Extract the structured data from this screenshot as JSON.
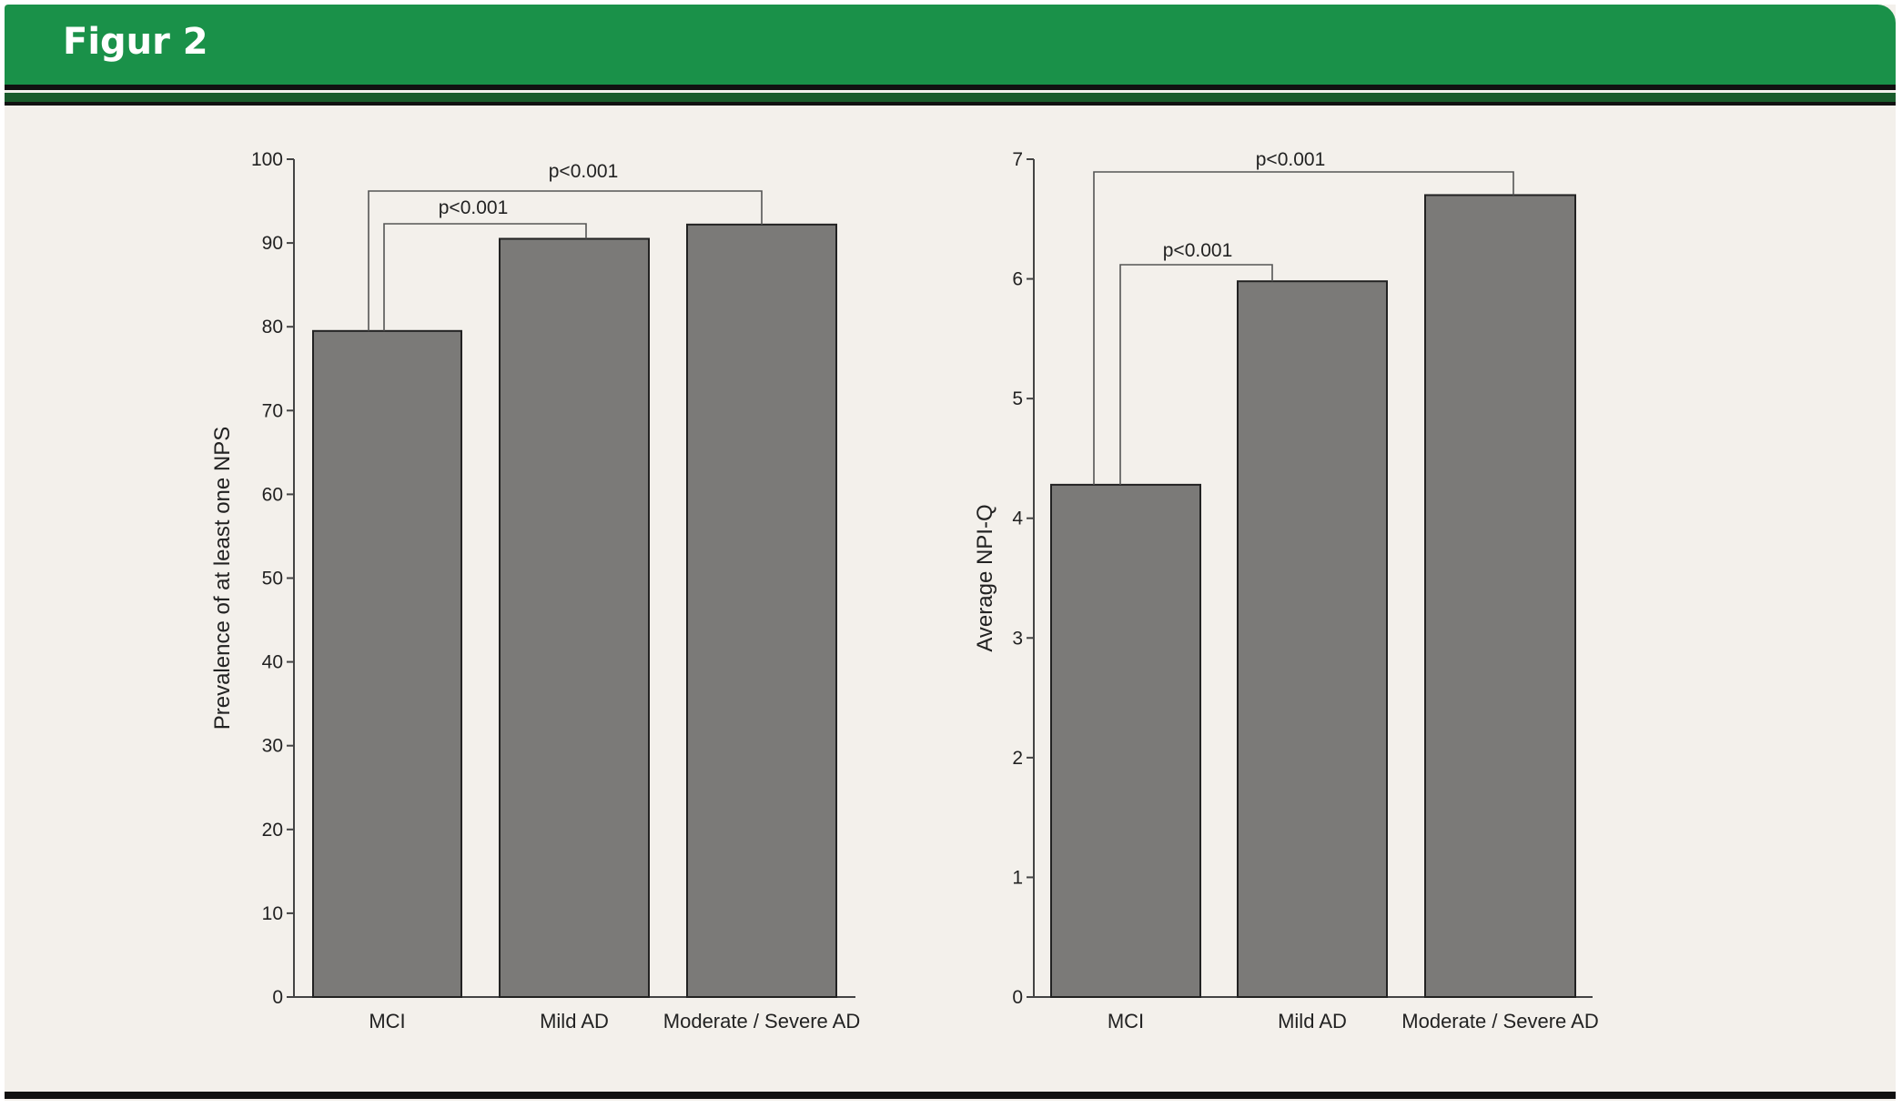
{
  "header": {
    "title": "Figur 2"
  },
  "colors": {
    "header_green": "#1a9149",
    "bar_fill": "#7b7a78",
    "background": "#f3f0eb"
  },
  "chart_data": [
    {
      "type": "bar",
      "categories": [
        "MCI",
        "Mild AD",
        "Moderate / Severe AD"
      ],
      "values": [
        79.5,
        90.5,
        92.2
      ],
      "ylabel": "Prevalence of at least one NPS",
      "ylim": [
        0,
        100
      ],
      "yticks": [
        0,
        10,
        20,
        30,
        40,
        50,
        60,
        70,
        80,
        90,
        100
      ],
      "annotations": [
        {
          "from": 0,
          "to": 2,
          "label": "p<0.001"
        },
        {
          "from": 0,
          "to": 1,
          "label": "p<0.001"
        }
      ]
    },
    {
      "type": "bar",
      "categories": [
        "MCI",
        "Mild AD",
        "Moderate / Severe AD"
      ],
      "values": [
        4.28,
        5.98,
        6.7
      ],
      "ylabel": "Average NPI-Q",
      "ylim": [
        0,
        7
      ],
      "yticks": [
        0,
        1,
        2,
        3,
        4,
        5,
        6,
        7
      ],
      "annotations": [
        {
          "from": 0,
          "to": 2,
          "label": "p<0.001"
        },
        {
          "from": 0,
          "to": 1,
          "label": "p<0.001"
        }
      ]
    }
  ]
}
